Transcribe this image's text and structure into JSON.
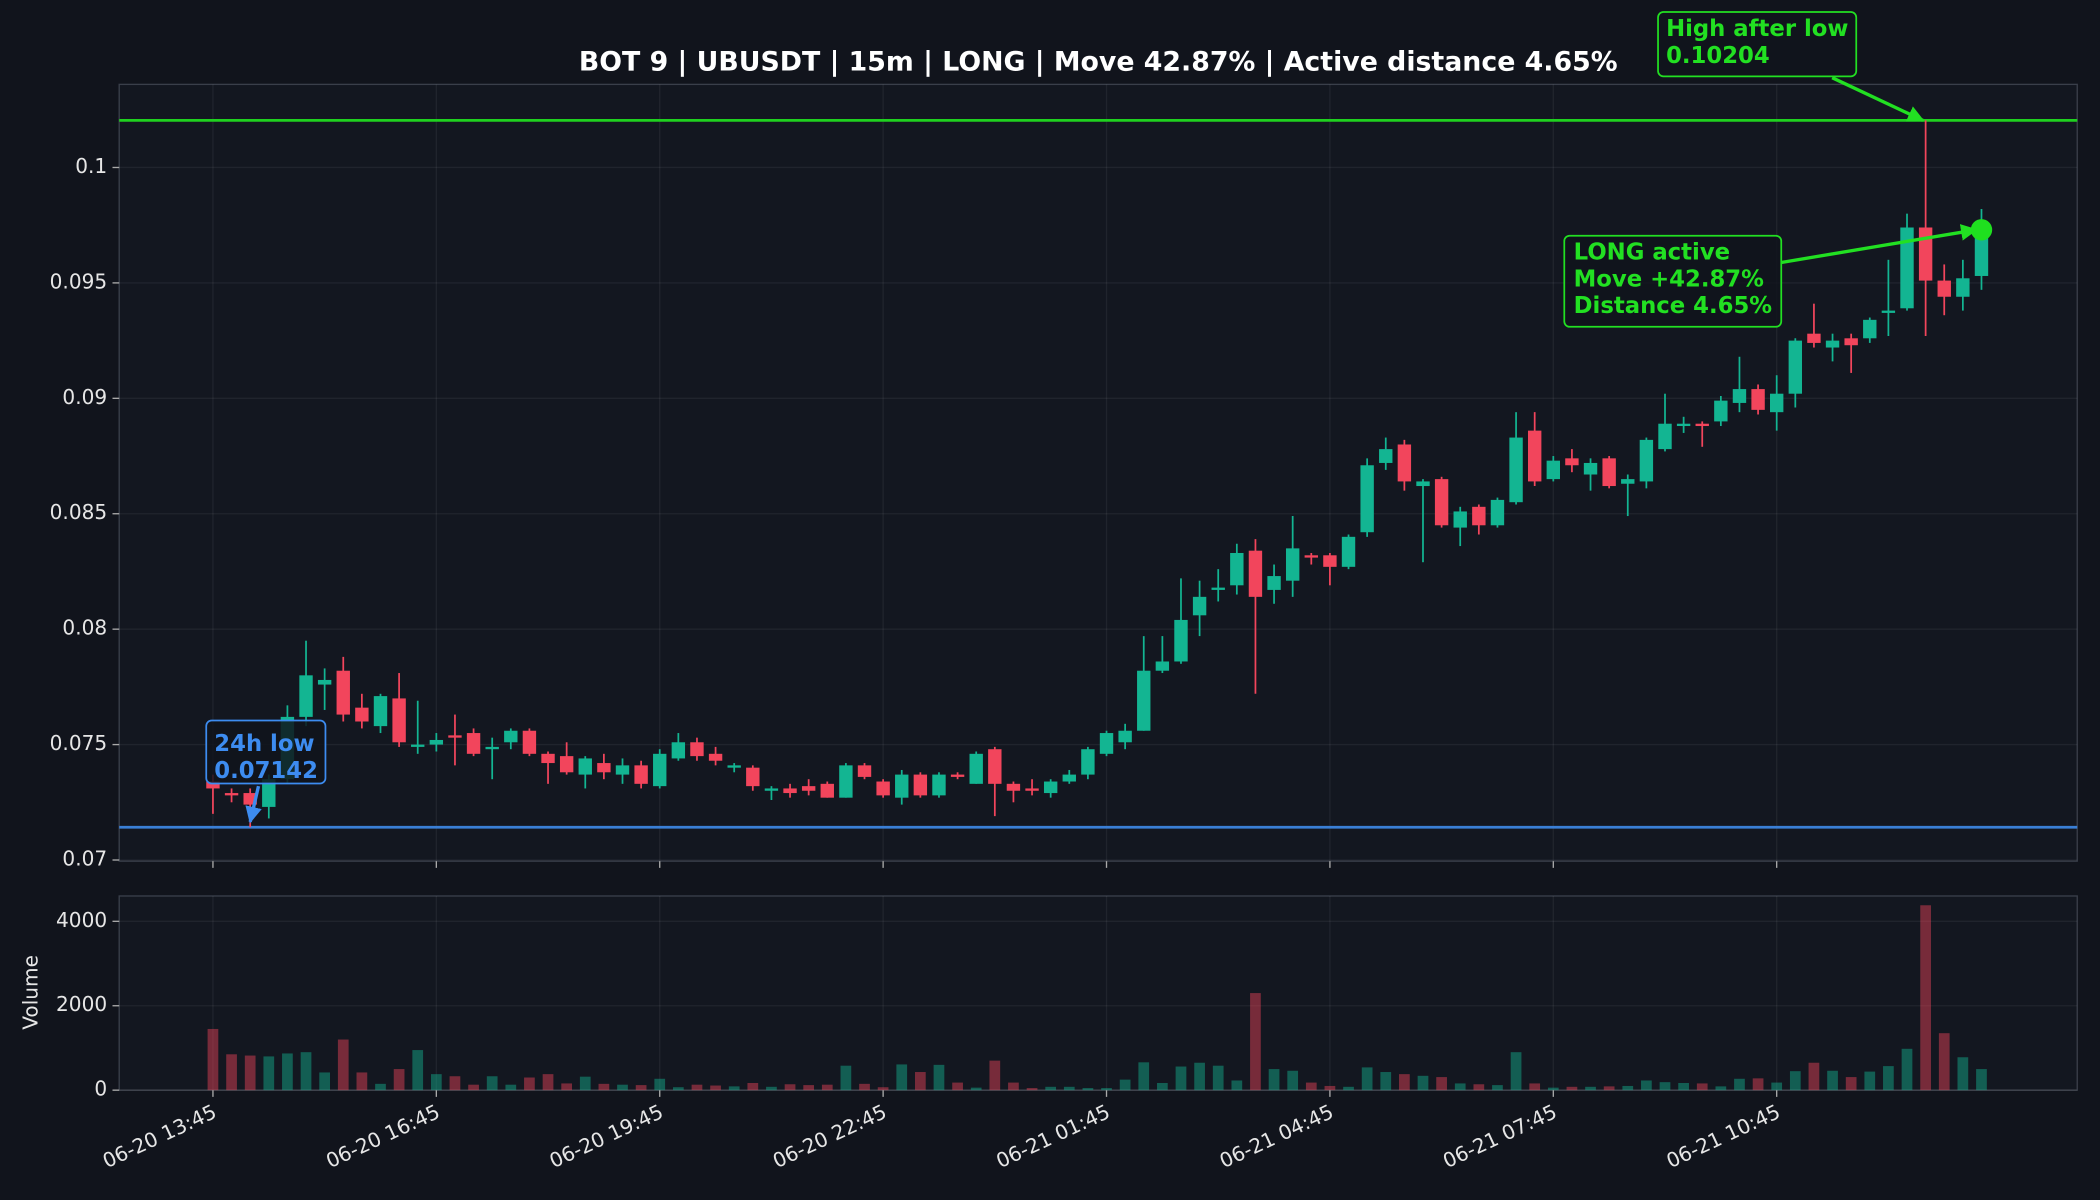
{
  "chart_data": {
    "type": "candlestick",
    "title": "BOT 9 | UBUSDT | 15m | LONG | Move 42.87% | Active distance 4.65%",
    "up_color": "#13b592",
    "down_color": "#f2455c",
    "categories": [
      "06-20 13:45",
      null,
      null,
      null,
      null,
      null,
      null,
      null,
      null,
      null,
      null,
      null,
      "06-20 16:45",
      null,
      null,
      null,
      null,
      null,
      null,
      null,
      null,
      null,
      null,
      null,
      "06-20 19:45",
      null,
      null,
      null,
      null,
      null,
      null,
      null,
      null,
      null,
      null,
      null,
      "06-20 22:45",
      null,
      null,
      null,
      null,
      null,
      null,
      null,
      null,
      null,
      null,
      null,
      "06-21 01:45",
      null,
      null,
      null,
      null,
      null,
      null,
      null,
      null,
      null,
      null,
      null,
      "06-21 04:45",
      null,
      null,
      null,
      null,
      null,
      null,
      null,
      null,
      null,
      null,
      null,
      "06-21 07:45",
      null,
      null,
      null,
      null,
      null,
      null,
      null,
      null,
      null,
      null,
      null,
      "06-21 10:45",
      null,
      null,
      null,
      null,
      null,
      null,
      null,
      null,
      null,
      null,
      null
    ],
    "open": [
      0.0734,
      0.0729,
      0.0729,
      0.0723,
      0.0735,
      0.0762,
      0.0776,
      0.0782,
      0.0766,
      0.0758,
      0.077,
      0.0749,
      0.075,
      0.0754,
      0.0755,
      0.0748,
      0.0751,
      0.0756,
      0.0746,
      0.0745,
      0.0737,
      0.0742,
      0.0737,
      0.0741,
      0.0732,
      0.0744,
      0.0751,
      0.0746,
      0.074,
      0.074,
      0.073,
      0.0731,
      0.0732,
      0.0733,
      0.0727,
      0.0741,
      0.0734,
      0.0727,
      0.0737,
      0.0728,
      0.0737,
      0.0733,
      0.0748,
      0.0733,
      0.0731,
      0.0729,
      0.0734,
      0.0737,
      0.0746,
      0.0751,
      0.0756,
      0.0782,
      0.0786,
      0.0806,
      0.0817,
      0.0819,
      0.0834,
      0.0817,
      0.0821,
      0.0832,
      0.0832,
      0.0827,
      0.0842,
      0.0872,
      0.088,
      0.0862,
      0.0865,
      0.0844,
      0.0853,
      0.0845,
      0.0855,
      0.0886,
      0.0865,
      0.0874,
      0.0867,
      0.0874,
      0.0863,
      0.0864,
      0.0878,
      0.0888,
      0.0889,
      0.089,
      0.0898,
      0.0904,
      0.0894,
      0.0902,
      0.0928,
      0.0922,
      0.0926,
      0.0926,
      0.0937,
      0.0939,
      0.0974,
      0.0951,
      0.0944,
      0.0953
    ],
    "high": [
      0.0737,
      0.0731,
      0.0731,
      0.0737,
      0.0767,
      0.0795,
      0.0783,
      0.0788,
      0.0772,
      0.0772,
      0.0781,
      0.0769,
      0.0755,
      0.0763,
      0.0757,
      0.0753,
      0.0757,
      0.0757,
      0.0747,
      0.0751,
      0.0745,
      0.0746,
      0.0744,
      0.0743,
      0.0748,
      0.0755,
      0.0753,
      0.0749,
      0.0742,
      0.0741,
      0.0732,
      0.0733,
      0.0735,
      0.0734,
      0.0742,
      0.0742,
      0.0735,
      0.0739,
      0.0738,
      0.0738,
      0.0738,
      0.0747,
      0.0749,
      0.0734,
      0.0735,
      0.0735,
      0.0739,
      0.0749,
      0.0756,
      0.0759,
      0.0797,
      0.0797,
      0.0822,
      0.0821,
      0.0826,
      0.0837,
      0.0839,
      0.0828,
      0.0849,
      0.0833,
      0.0833,
      0.0841,
      0.0874,
      0.0883,
      0.0882,
      0.0865,
      0.0866,
      0.0853,
      0.0854,
      0.0857,
      0.0894,
      0.0894,
      0.0875,
      0.0878,
      0.0874,
      0.0875,
      0.0867,
      0.0883,
      0.0902,
      0.0892,
      0.089,
      0.0901,
      0.0918,
      0.0906,
      0.091,
      0.0926,
      0.0941,
      0.0928,
      0.0928,
      0.0935,
      0.096,
      0.098,
      0.10204,
      0.0958,
      0.096,
      0.0982
    ],
    "low": [
      0.072,
      0.0725,
      0.07142,
      0.0718,
      0.0733,
      0.0758,
      0.0765,
      0.076,
      0.0757,
      0.0755,
      0.0749,
      0.0746,
      0.0747,
      0.0741,
      0.0745,
      0.0735,
      0.0748,
      0.0745,
      0.0733,
      0.0737,
      0.0731,
      0.0735,
      0.0733,
      0.0731,
      0.0731,
      0.0743,
      0.0743,
      0.0741,
      0.0738,
      0.073,
      0.0726,
      0.0727,
      0.0728,
      0.0727,
      0.0727,
      0.0735,
      0.0727,
      0.0724,
      0.0727,
      0.0727,
      0.0735,
      0.0733,
      0.0719,
      0.0725,
      0.0728,
      0.0727,
      0.0733,
      0.0735,
      0.0745,
      0.0748,
      0.0756,
      0.0781,
      0.0785,
      0.0797,
      0.0812,
      0.0815,
      0.0772,
      0.0811,
      0.0814,
      0.0828,
      0.0819,
      0.0826,
      0.084,
      0.0869,
      0.086,
      0.0829,
      0.0844,
      0.0836,
      0.0841,
      0.0844,
      0.0854,
      0.0862,
      0.0864,
      0.0868,
      0.086,
      0.0861,
      0.0849,
      0.0861,
      0.0877,
      0.0885,
      0.0879,
      0.0888,
      0.0894,
      0.0893,
      0.0886,
      0.0896,
      0.0922,
      0.0916,
      0.0911,
      0.0924,
      0.0927,
      0.0938,
      0.0927,
      0.0936,
      0.0938,
      0.0947
    ],
    "close": [
      0.0731,
      0.0728,
      0.0724,
      0.0735,
      0.0762,
      0.078,
      0.0778,
      0.0763,
      0.076,
      0.0771,
      0.0751,
      0.075,
      0.0752,
      0.0753,
      0.0746,
      0.0749,
      0.0756,
      0.0746,
      0.0742,
      0.0738,
      0.0744,
      0.0738,
      0.0741,
      0.0733,
      0.0746,
      0.0751,
      0.0745,
      0.0743,
      0.0741,
      0.0732,
      0.0731,
      0.0729,
      0.073,
      0.0727,
      0.0741,
      0.0736,
      0.0728,
      0.0737,
      0.0728,
      0.0737,
      0.0736,
      0.0746,
      0.0733,
      0.073,
      0.073,
      0.0734,
      0.0737,
      0.0748,
      0.0755,
      0.0756,
      0.0782,
      0.0786,
      0.0804,
      0.0814,
      0.0818,
      0.0833,
      0.0814,
      0.0823,
      0.0835,
      0.0831,
      0.0827,
      0.084,
      0.0871,
      0.0878,
      0.0864,
      0.0864,
      0.0845,
      0.0851,
      0.0845,
      0.0856,
      0.0883,
      0.0864,
      0.0873,
      0.0871,
      0.0872,
      0.0862,
      0.0865,
      0.0882,
      0.0889,
      0.0889,
      0.0888,
      0.0899,
      0.0904,
      0.0895,
      0.0902,
      0.0925,
      0.0924,
      0.0925,
      0.0923,
      0.0934,
      0.0938,
      0.0974,
      0.0951,
      0.0944,
      0.0952,
      0.0973
    ],
    "volume": [
      1450,
      850,
      820,
      800,
      870,
      900,
      420,
      1200,
      420,
      150,
      500,
      950,
      380,
      330,
      130,
      330,
      130,
      300,
      380,
      160,
      320,
      150,
      130,
      120,
      270,
      70,
      130,
      110,
      90,
      170,
      80,
      140,
      120,
      130,
      580,
      150,
      70,
      610,
      430,
      600,
      180,
      60,
      700,
      180,
      50,
      80,
      80,
      50,
      50,
      250,
      660,
      170,
      560,
      650,
      580,
      230,
      2300,
      500,
      460,
      180,
      100,
      80,
      540,
      430,
      380,
      340,
      310,
      160,
      140,
      120,
      900,
      160,
      60,
      80,
      80,
      90,
      100,
      230,
      190,
      170,
      160,
      90,
      270,
      280,
      180,
      450,
      650,
      460,
      310,
      440,
      570,
      980,
      4380,
      1350,
      780,
      500
    ],
    "ylim": [
      0.06995,
      0.1036
    ],
    "yticks": [
      0.07,
      0.075,
      0.08,
      0.085,
      0.09,
      0.095,
      0.1
    ],
    "levels": [
      {
        "value": 0.10204,
        "color": "#1fd11f"
      },
      {
        "value": 0.07142,
        "color": "#3a7fd6"
      }
    ],
    "volume_panel": {
      "ylabel": "Volume",
      "ylim": [
        0,
        4600
      ],
      "yticks": [
        0,
        2000,
        4000
      ]
    },
    "annotations": [
      {
        "lines": [
          "24h low",
          "0.07142"
        ],
        "color": "#3d8cf0"
      },
      {
        "lines": [
          "High after low",
          "0.10204"
        ],
        "color": "#22e022"
      },
      {
        "lines": [
          "LONG active",
          "Move +42.87%",
          "Distance 4.65%"
        ],
        "color": "#22e022"
      }
    ]
  }
}
